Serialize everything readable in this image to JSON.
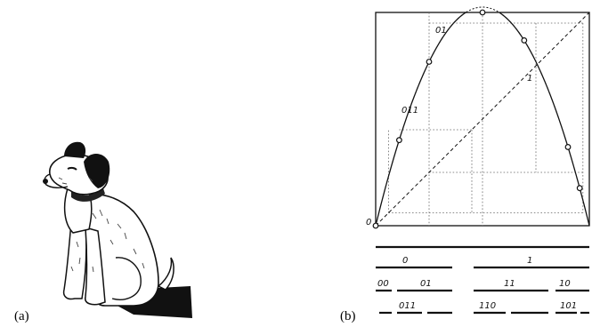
{
  "panels": {
    "a": {
      "label": "(a)"
    },
    "b": {
      "label": "(b)"
    }
  },
  "map_points": [
    {
      "text": "0"
    },
    {
      "text": "01"
    },
    {
      "text": "011"
    },
    {
      "text": "1"
    }
  ],
  "partition_rows": [
    {
      "level": 0,
      "segments": [
        {
          "text": ""
        }
      ]
    },
    {
      "level": 1,
      "segments": [
        {
          "text": "0"
        },
        {
          "text": "1"
        }
      ]
    },
    {
      "level": 2,
      "segments": [
        {
          "text": "00"
        },
        {
          "text": "01"
        },
        {
          "text": "11"
        },
        {
          "text": "10"
        }
      ]
    },
    {
      "level": 3,
      "segments": [
        {
          "text": ""
        },
        {
          "text": "011"
        },
        {
          "text": ""
        },
        {
          "text": "110"
        },
        {
          "text": ""
        },
        {
          "text": "101"
        },
        {
          "text": ""
        }
      ]
    }
  ]
}
